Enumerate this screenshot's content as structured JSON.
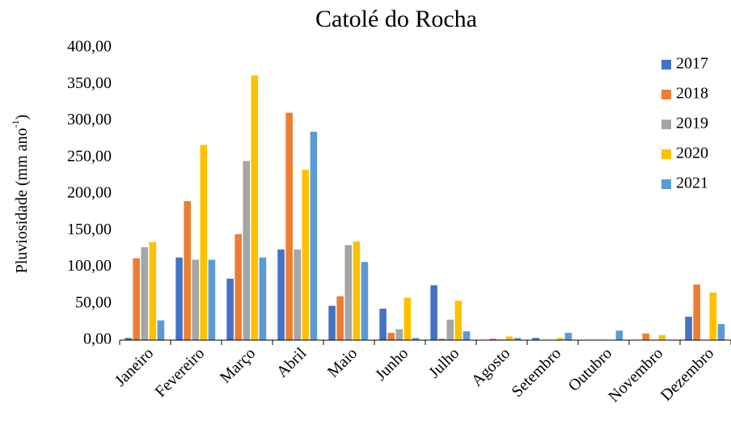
{
  "chart_data": {
    "type": "bar",
    "title": "Catolé do Rocha",
    "ylabel": {
      "text": "Pluviosidade (mm ano",
      "superscript": "-1",
      "suffix": ")"
    },
    "categories": [
      "Janeiro",
      "Fevereiro",
      "Março",
      "Abril",
      "Maio",
      "Junho",
      "Julho",
      "Agosto",
      "Setembro",
      "Outubro",
      "Novembro",
      "Dezembro"
    ],
    "series": [
      {
        "name": "2017",
        "color": "#4472c4",
        "values": [
          3,
          113,
          84,
          124,
          47,
          43,
          75,
          0,
          3,
          0,
          0,
          32
        ]
      },
      {
        "name": "2018",
        "color": "#ed7d31",
        "values": [
          112,
          190,
          145,
          311,
          60,
          10,
          2,
          2,
          0,
          0,
          9,
          76
        ]
      },
      {
        "name": "2019",
        "color": "#a5a5a5",
        "values": [
          127,
          110,
          245,
          124,
          130,
          15,
          28,
          1,
          0,
          0,
          0,
          0
        ]
      },
      {
        "name": "2020",
        "color": "#ffc000",
        "values": [
          134,
          267,
          362,
          233,
          135,
          58,
          54,
          5,
          3,
          0,
          7,
          65
        ]
      },
      {
        "name": "2021",
        "color": "#5b9bd5",
        "values": [
          27,
          110,
          113,
          285,
          107,
          3,
          12,
          3,
          10,
          13,
          0,
          22
        ]
      }
    ],
    "ylim": [
      0,
      400
    ],
    "yticks": [
      {
        "value": 0,
        "label": "0,00"
      },
      {
        "value": 50,
        "label": "50,00"
      },
      {
        "value": 100,
        "label": "100,00"
      },
      {
        "value": 150,
        "label": "150,00"
      },
      {
        "value": 200,
        "label": "200,00"
      },
      {
        "value": 250,
        "label": "250,00"
      },
      {
        "value": 300,
        "label": "300,00"
      },
      {
        "value": 350,
        "label": "350,00"
      },
      {
        "value": 400,
        "label": "400,00"
      }
    ],
    "grid": false,
    "legend": "upper right"
  }
}
